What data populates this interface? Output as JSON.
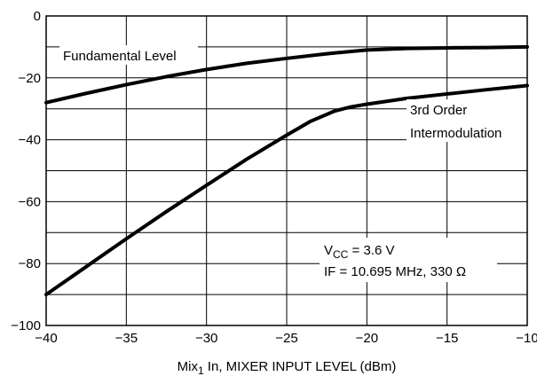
{
  "chart_data": {
    "type": "line",
    "title": "",
    "xlabel_main": "Mix",
    "xlabel_sub": "1",
    "xlabel_rest": " In, MIXER INPUT LEVEL (dBm)",
    "ylabel": "",
    "xlim": [
      -40,
      -10
    ],
    "ylim": [
      -100,
      0
    ],
    "x_ticks": [
      -40,
      -35,
      -30,
      -25,
      -20,
      -15,
      -10
    ],
    "x_tick_labels": [
      "−40",
      "−35",
      "−30",
      "−25",
      "−20",
      "−15",
      "−10"
    ],
    "y_ticks": [
      0,
      -20,
      -40,
      -60,
      -80,
      -100
    ],
    "y_tick_labels": [
      "0",
      "−20",
      "−40",
      "−60",
      "−80",
      "−100"
    ],
    "x_grid_step": 5,
    "y_grid_step": 10,
    "grid": true,
    "series": [
      {
        "name": "Fundamental Level",
        "x": [
          -40,
          -37.5,
          -35,
          -32.5,
          -30,
          -27.5,
          -25,
          -22.5,
          -20,
          -17.5,
          -15,
          -12.5,
          -10
        ],
        "y": [
          -28,
          -25,
          -22.2,
          -19.6,
          -17.3,
          -15.3,
          -13.7,
          -12.2,
          -11,
          -10.5,
          -10.3,
          -10.2,
          -10
        ]
      },
      {
        "name": "3rd Order Intermodulation",
        "x": [
          -40,
          -37.5,
          -35,
          -32.5,
          -30,
          -27.5,
          -25,
          -23.5,
          -22,
          -21,
          -20,
          -17.5,
          -15,
          -12.5,
          -10
        ],
        "y": [
          -90,
          -81,
          -72,
          -63.2,
          -54.7,
          -46.3,
          -38.5,
          -34,
          -30.7,
          -29.4,
          -28.5,
          -26.6,
          -25.2,
          -23.8,
          -22.5
        ]
      }
    ],
    "annotations": {
      "fundamental": "Fundamental Level",
      "im3_line1": "3rd Order",
      "im3_line2": "Intermodulation",
      "vcc_main": "V",
      "vcc_sub": "CC",
      "vcc_rest": " = 3.6 V",
      "if_text": "IF = 10.695 MHz, 330 Ω"
    }
  }
}
